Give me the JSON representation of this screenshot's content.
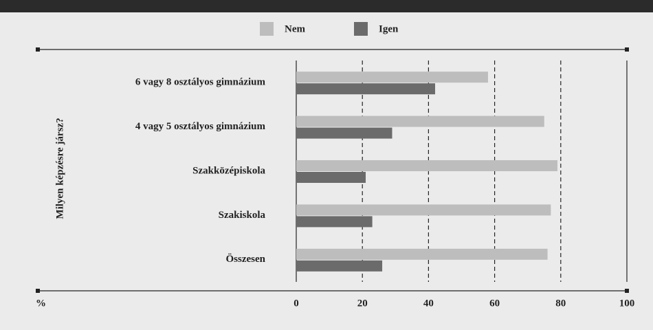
{
  "chart_data": {
    "type": "bar",
    "orientation": "horizontal",
    "y_axis_label": "Milyen képzésre jársz?",
    "x_axis_label": "%",
    "categories": [
      "6 vagy 8 osztályos gimnázium",
      "4 vagy 5 osztályos gimnázium",
      "Szakközépiskola",
      "Szakiskola",
      "Összesen"
    ],
    "series": [
      {
        "name": "Nem",
        "color": "#bdbdbd",
        "values": [
          58,
          75,
          79,
          77,
          76
        ]
      },
      {
        "name": "Igen",
        "color": "#6b6b6b",
        "values": [
          42,
          29,
          21,
          23,
          26
        ]
      }
    ],
    "xlim": [
      0,
      100
    ],
    "xticks": [
      0,
      20,
      40,
      60,
      80,
      100
    ],
    "grid": true
  }
}
